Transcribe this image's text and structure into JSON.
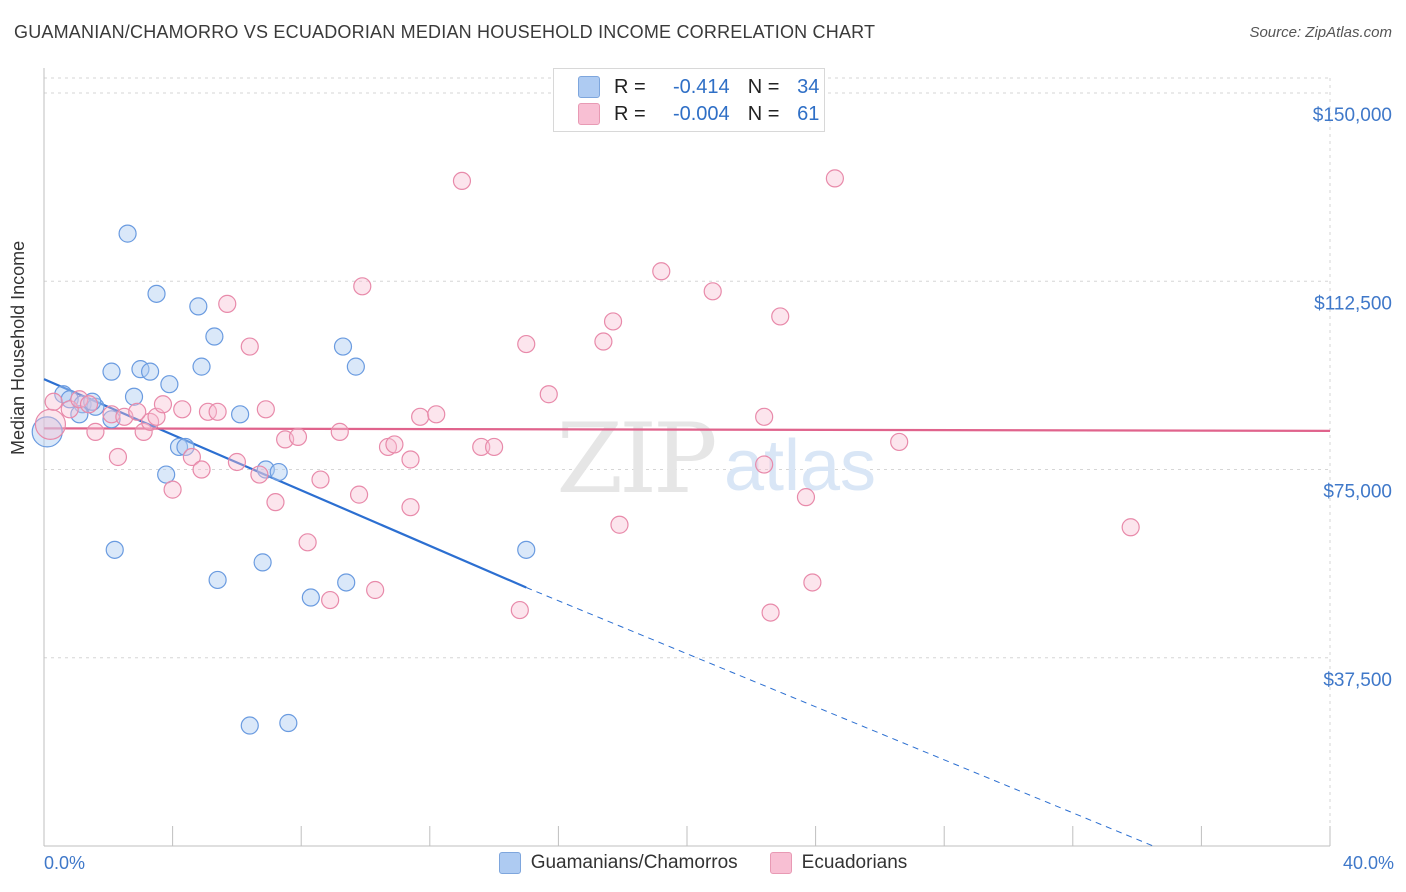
{
  "title": "GUAMANIAN/CHAMORRO VS ECUADORIAN MEDIAN HOUSEHOLD INCOME CORRELATION CHART",
  "source": "Source: ZipAtlas.com",
  "watermark": {
    "zip": "ZIP",
    "atlas": "atlas"
  },
  "legend": {
    "rows": [
      {
        "r_label": "R =",
        "r_value": "-0.414",
        "n_label": "N =",
        "n_value": "34",
        "color": "#aecbf2",
        "border": "#7ea6dd"
      },
      {
        "r_label": "R =",
        "r_value": "-0.004",
        "n_label": "N =",
        "n_value": "61",
        "color": "#f8bfd3",
        "border": "#e89ab4"
      }
    ]
  },
  "bottom_legend": {
    "series1": "Guamanians/Chamorros",
    "series2": "Ecuadorians"
  },
  "chart_data": {
    "type": "scatter",
    "xlabel": "",
    "ylabel": "Median Household Income",
    "xlim": [
      0,
      40
    ],
    "ylim": [
      0,
      153000
    ],
    "x_tick_labels": [
      "0.0%",
      "40.0%"
    ],
    "y_tick_labels": [
      "$150,000",
      "$112,500",
      "$75,000",
      "$37,500"
    ],
    "y_ticks": [
      150000,
      112500,
      75000,
      37500
    ],
    "grid": true,
    "series": [
      {
        "name": "Guamanians/Chamorros",
        "color": "#6a9be0",
        "fill": "rgba(174,203,242,0.45)",
        "points": [
          [
            0.1,
            82500
          ],
          [
            0.6,
            90000
          ],
          [
            0.8,
            89000
          ],
          [
            1.2,
            88000
          ],
          [
            1.1,
            86000
          ],
          [
            1.6,
            87500
          ],
          [
            2.1,
            94500
          ],
          [
            2.1,
            85000
          ],
          [
            2.6,
            122000
          ],
          [
            2.8,
            89500
          ],
          [
            3.0,
            95000
          ],
          [
            3.3,
            94500
          ],
          [
            3.5,
            110000
          ],
          [
            3.8,
            74000
          ],
          [
            3.9,
            92000
          ],
          [
            4.2,
            79500
          ],
          [
            4.4,
            79500
          ],
          [
            4.8,
            107500
          ],
          [
            4.9,
            95500
          ],
          [
            5.3,
            101500
          ],
          [
            5.4,
            53000
          ],
          [
            6.1,
            86000
          ],
          [
            6.4,
            24000
          ],
          [
            6.8,
            56500
          ],
          [
            6.9,
            75000
          ],
          [
            7.3,
            74500
          ],
          [
            7.6,
            24500
          ],
          [
            8.3,
            49500
          ],
          [
            9.3,
            99500
          ],
          [
            9.4,
            52500
          ],
          [
            9.7,
            95500
          ],
          [
            15.0,
            59000
          ],
          [
            2.2,
            59000
          ],
          [
            1.5,
            88500
          ]
        ],
        "trend": {
          "x0": 0,
          "y0": 93000,
          "x1": 15.0,
          "y1": 51500,
          "dash_x1": 34.5,
          "dash_y1": 0
        }
      },
      {
        "name": "Ecuadorians",
        "color": "#e88aaa",
        "fill": "rgba(248,191,211,0.4)",
        "points": [
          [
            0.2,
            84000
          ],
          [
            0.8,
            87000
          ],
          [
            1.1,
            89000
          ],
          [
            1.4,
            88000
          ],
          [
            1.6,
            82500
          ],
          [
            2.1,
            86000
          ],
          [
            2.3,
            77500
          ],
          [
            2.5,
            85500
          ],
          [
            3.1,
            82500
          ],
          [
            3.3,
            84500
          ],
          [
            3.5,
            85500
          ],
          [
            3.7,
            88000
          ],
          [
            4.0,
            71000
          ],
          [
            4.3,
            87000
          ],
          [
            4.6,
            77500
          ],
          [
            4.9,
            75000
          ],
          [
            5.1,
            86500
          ],
          [
            5.4,
            86500
          ],
          [
            5.7,
            108000
          ],
          [
            6.0,
            76500
          ],
          [
            6.4,
            99500
          ],
          [
            6.7,
            74000
          ],
          [
            6.9,
            87000
          ],
          [
            7.2,
            68500
          ],
          [
            7.5,
            81000
          ],
          [
            7.9,
            81500
          ],
          [
            8.2,
            60500
          ],
          [
            8.6,
            73000
          ],
          [
            8.9,
            49000
          ],
          [
            9.2,
            82500
          ],
          [
            9.8,
            70000
          ],
          [
            9.9,
            111500
          ],
          [
            10.3,
            51000
          ],
          [
            10.7,
            79500
          ],
          [
            10.9,
            80000
          ],
          [
            11.4,
            77000
          ],
          [
            11.7,
            85500
          ],
          [
            11.4,
            67500
          ],
          [
            12.2,
            86000
          ],
          [
            13.0,
            132500
          ],
          [
            13.6,
            79500
          ],
          [
            14.0,
            79500
          ],
          [
            14.8,
            47000
          ],
          [
            15.0,
            100000
          ],
          [
            15.7,
            90000
          ],
          [
            17.4,
            100500
          ],
          [
            17.7,
            104500
          ],
          [
            17.9,
            64000
          ],
          [
            19.2,
            114500
          ],
          [
            20.8,
            110500
          ],
          [
            22.4,
            85500
          ],
          [
            22.4,
            76000
          ],
          [
            22.9,
            105500
          ],
          [
            23.7,
            69500
          ],
          [
            23.9,
            52500
          ],
          [
            24.6,
            133000
          ],
          [
            26.6,
            80500
          ],
          [
            33.8,
            63500
          ],
          [
            22.6,
            46500
          ],
          [
            0.3,
            88500
          ],
          [
            2.9,
            86500
          ]
        ],
        "trend": {
          "x0": 0,
          "y0": 83200,
          "x1": 40,
          "y1": 82700
        }
      }
    ]
  }
}
